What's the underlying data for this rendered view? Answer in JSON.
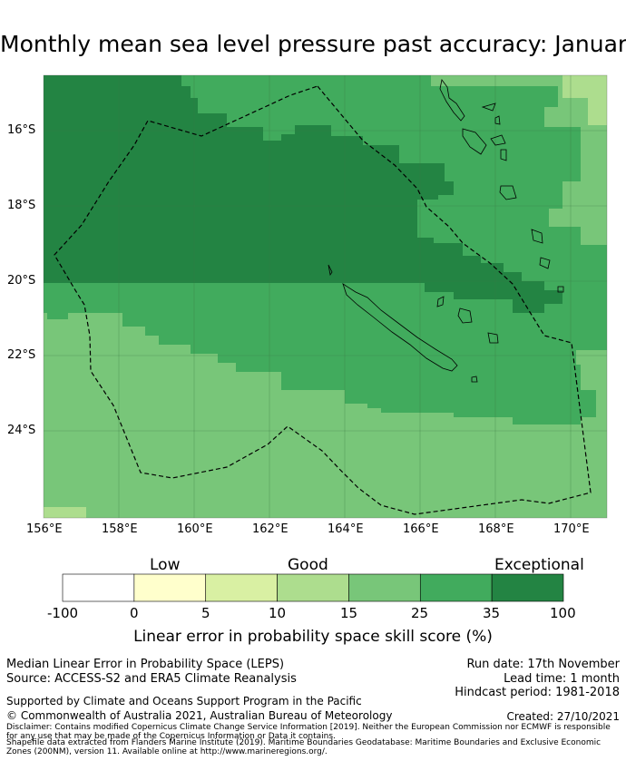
{
  "title": "Monthly mean sea level pressure past accuracy: January",
  "map": {
    "lat_labels": [
      "16°S",
      "18°S",
      "20°S",
      "22°S",
      "24°S"
    ],
    "lon_labels": [
      "156°E",
      "158°E",
      "160°E",
      "162°E",
      "164°E",
      "166°E",
      "168°E",
      "170°E"
    ],
    "lon_range": [
      156,
      171
    ],
    "lat_range": [
      -14.6,
      -26.2
    ]
  },
  "colorbar": {
    "categories": [
      "Low",
      "Good",
      "Exceptional"
    ],
    "ticks": [
      "-100",
      "0",
      "5",
      "10",
      "15",
      "25",
      "35",
      "100"
    ],
    "colors": [
      "#ffffff",
      "#ffffcc",
      "#d9f0a3",
      "#addd8e",
      "#78c679",
      "#41ab5d",
      "#238443"
    ],
    "title": "Linear error in probability space skill score (%)"
  },
  "footer": {
    "metric": "Median Linear Error in Probability Space (LEPS)",
    "source": "Source: ACCESS-S2 and ERA5 Climate Reanalysis",
    "run_date": "Run date: 17th November",
    "lead_time": "Lead time: 1 month",
    "hindcast": "Hindcast period: 1981-2018",
    "support": "Supported by Climate and Oceans Support Program in the Pacific",
    "copyright": "© Commonwealth of Australia 2021, Australian Bureau of Meteorology",
    "created": "Created: 27/10/2021",
    "disclaimer": "Disclaimer: Contains modified Copernicus Climate Change Service Information [2019]. Neither the European Commission nor ECMWF is responsible for any use that may be made of the Copernicus Information or Data it contains.",
    "shapefile": "Shapefile data extracted from Flanders Marine Institute (2019). Maritime Boundaries Geodatabase: Maritime Boundaries and Exclusive Economic Zones (200NM), version 11. Available online at http://www.marineregions.org/."
  }
}
